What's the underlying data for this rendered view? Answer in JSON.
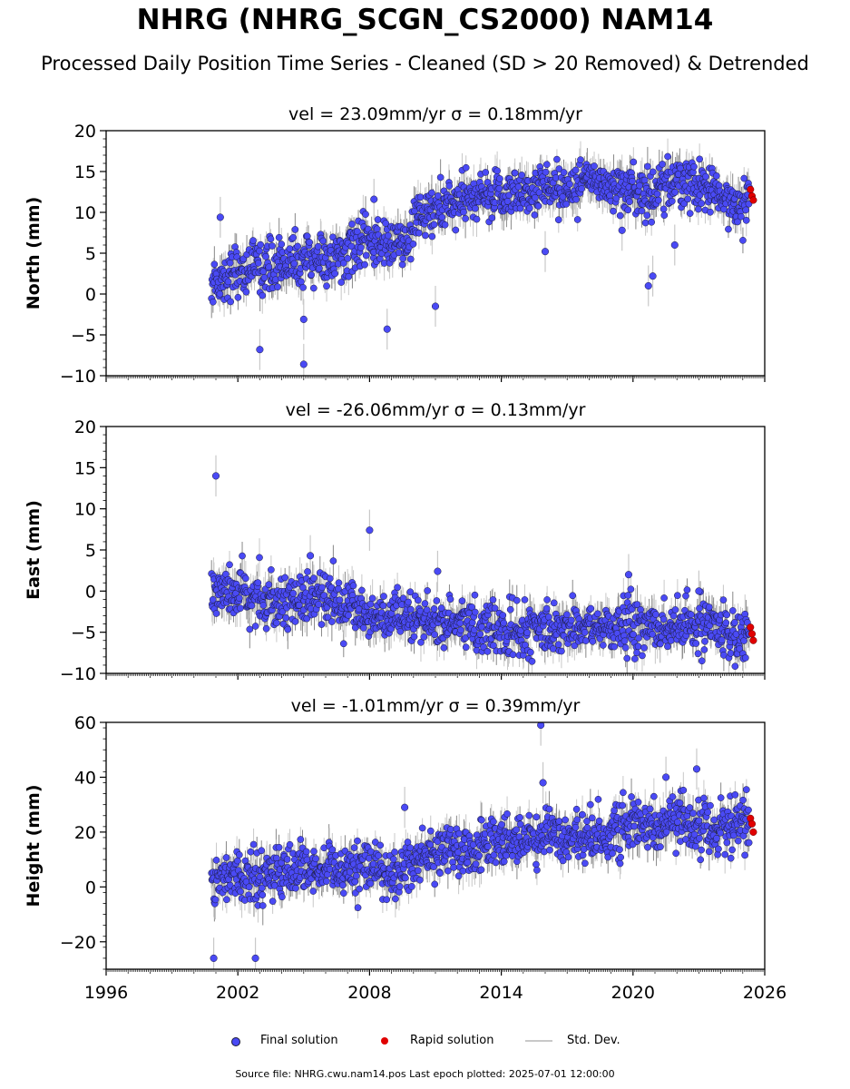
{
  "title": "NHRG (NHRG_SCGN_CS2000) NAM14",
  "subtitle": "Processed Daily Position Time Series - Cleaned (SD > 20 Removed) & Detrended",
  "footer": "Source file: NHRG.cwu.nam14.pos  Last epoch plotted: 2025-07-01 12:00:00",
  "legend": {
    "final": "Final solution",
    "rapid": "Rapid solution",
    "std": "Std. Dev."
  },
  "colors": {
    "final": "#4a4af5",
    "rapid": "#e00000",
    "std": "#c8c8c8",
    "edge": "#1a1a3a"
  },
  "chart_data": [
    {
      "type": "scatter",
      "panel": "north",
      "title": "vel = 23.09mm/yr   σ = 0.18mm/yr",
      "ylabel": "North (mm)",
      "xlim": [
        1996,
        2026
      ],
      "ylim": [
        -10,
        20
      ],
      "yticks": [
        "20",
        "15",
        "10",
        "5",
        "0",
        "−5",
        "−10"
      ],
      "xticks": [],
      "series": [
        {
          "name": "Final solution",
          "x": [
            2000.8,
            2001.0,
            2001.3,
            2001.8,
            2002.3,
            2002.9,
            2003.5,
            2004.2,
            2004.9,
            2005.6,
            2006.3,
            2007.0,
            2007.7,
            2008.4,
            2009.1,
            2009.7,
            2010.2,
            2010.9,
            2011.6,
            2012.3,
            2013.0,
            2013.7,
            2014.4,
            2015.1,
            2015.8,
            2016.5,
            2017.2,
            2017.9,
            2018.6,
            2019.3,
            2020.0,
            2020.7,
            2021.4,
            2022.1,
            2022.8,
            2023.5,
            2024.2,
            2024.9,
            2025.3
          ],
          "y": [
            1.0,
            2.2,
            1.5,
            3.1,
            2.8,
            3.6,
            3.2,
            4.1,
            3.8,
            4.5,
            3.9,
            5.2,
            6.1,
            6.4,
            6.0,
            5.9,
            9.5,
            10.3,
            10.8,
            11.2,
            11.8,
            12.1,
            12.4,
            12.7,
            12.9,
            13.3,
            13.0,
            13.6,
            13.8,
            13.4,
            12.6,
            12.2,
            13.4,
            13.9,
            13.1,
            12.6,
            11.0,
            11.4,
            12.0
          ]
        },
        {
          "name": "Rapid solution",
          "x": [
            2025.35,
            2025.42,
            2025.48
          ],
          "y": [
            12.8,
            12.0,
            11.5
          ]
        }
      ],
      "outliers": [
        [
          2001.2,
          9.4
        ],
        [
          2003.0,
          -6.8
        ],
        [
          2005.0,
          -8.6
        ],
        [
          2005.0,
          -3.1
        ],
        [
          2008.2,
          11.6
        ],
        [
          2008.8,
          -4.3
        ],
        [
          2011.0,
          -1.5
        ],
        [
          2016.0,
          5.2
        ],
        [
          2020.7,
          1.0
        ],
        [
          2020.9,
          2.2
        ],
        [
          2021.9,
          6.0
        ],
        [
          2019.5,
          7.8
        ]
      ]
    },
    {
      "type": "scatter",
      "panel": "east",
      "title": "vel = -26.06mm/yr   σ = 0.13mm/yr",
      "ylabel": "East (mm)",
      "xlim": [
        1996,
        2026
      ],
      "ylim": [
        -10,
        20
      ],
      "yticks": [
        "20",
        "15",
        "10",
        "5",
        "0",
        "−5",
        "−10"
      ],
      "xticks": [],
      "series": [
        {
          "name": "Final solution",
          "x": [
            2000.8,
            2001.5,
            2002.2,
            2002.9,
            2003.6,
            2004.3,
            2005.0,
            2005.7,
            2006.4,
            2007.1,
            2007.8,
            2008.5,
            2009.2,
            2009.9,
            2010.6,
            2011.3,
            2012.0,
            2012.7,
            2013.4,
            2014.1,
            2014.8,
            2015.5,
            2016.2,
            2016.9,
            2017.6,
            2018.3,
            2019.0,
            2019.7,
            2020.4,
            2021.1,
            2021.8,
            2022.5,
            2023.2,
            2023.9,
            2024.6,
            2025.3
          ],
          "y": [
            0.5,
            -0.2,
            -0.6,
            -0.9,
            -1.2,
            -0.8,
            -1.0,
            -0.7,
            -1.5,
            -1.8,
            -2.6,
            -3.0,
            -3.6,
            -3.9,
            -3.4,
            -3.7,
            -3.9,
            -4.2,
            -4.5,
            -5.0,
            -4.9,
            -4.7,
            -4.6,
            -4.5,
            -4.3,
            -4.4,
            -4.6,
            -4.2,
            -4.3,
            -4.4,
            -4.6,
            -4.2,
            -4.5,
            -4.8,
            -4.9,
            -5.0
          ]
        },
        {
          "name": "Rapid solution",
          "x": [
            2025.35,
            2025.42,
            2025.48
          ],
          "y": [
            -4.4,
            -5.2,
            -6.0
          ]
        }
      ],
      "outliers": [
        [
          2001.0,
          14.0
        ],
        [
          2008.0,
          7.4
        ],
        [
          2005.3,
          4.3
        ],
        [
          2011.1,
          2.4
        ],
        [
          2019.8,
          2.0
        ],
        [
          2023.0,
          0.0
        ]
      ]
    },
    {
      "type": "scatter",
      "panel": "height",
      "title": "vel = -1.01mm/yr   σ = 0.39mm/yr",
      "ylabel": "Height (mm)",
      "xlim": [
        1996,
        2026
      ],
      "ylim": [
        -30,
        60
      ],
      "yticks": [
        "60",
        "40",
        "20",
        "0",
        "−20"
      ],
      "xticks": [
        "1996",
        "2002",
        "2008",
        "2014",
        "2020",
        "2026"
      ],
      "series": [
        {
          "name": "Final solution",
          "x": [
            2000.8,
            2001.3,
            2001.8,
            2002.3,
            2002.9,
            2003.5,
            2004.2,
            2004.9,
            2005.6,
            2006.3,
            2007.0,
            2007.7,
            2008.4,
            2009.1,
            2009.8,
            2010.5,
            2011.2,
            2011.9,
            2012.6,
            2013.3,
            2014.0,
            2014.7,
            2015.4,
            2016.1,
            2016.8,
            2017.5,
            2018.2,
            2018.9,
            2019.6,
            2020.3,
            2021.0,
            2021.7,
            2022.4,
            2023.1,
            2023.8,
            2024.5,
            2025.2
          ],
          "y": [
            2,
            4,
            3,
            5,
            4,
            6,
            5,
            7,
            4,
            6,
            5,
            7,
            6,
            5,
            9,
            11,
            12,
            14,
            13,
            15,
            16,
            17,
            18,
            20,
            19,
            18,
            20,
            19,
            21,
            22,
            23,
            22,
            24,
            23,
            21,
            22,
            23
          ]
        },
        {
          "name": "Rapid solution",
          "x": [
            2025.35,
            2025.42,
            2025.48
          ],
          "y": [
            25,
            23,
            20
          ]
        }
      ],
      "outliers": [
        [
          2000.9,
          -26
        ],
        [
          2002.8,
          -26
        ],
        [
          2015.8,
          59
        ],
        [
          2015.9,
          38
        ],
        [
          2022.9,
          43
        ],
        [
          2021.5,
          40
        ],
        [
          2009.6,
          29
        ]
      ]
    }
  ]
}
